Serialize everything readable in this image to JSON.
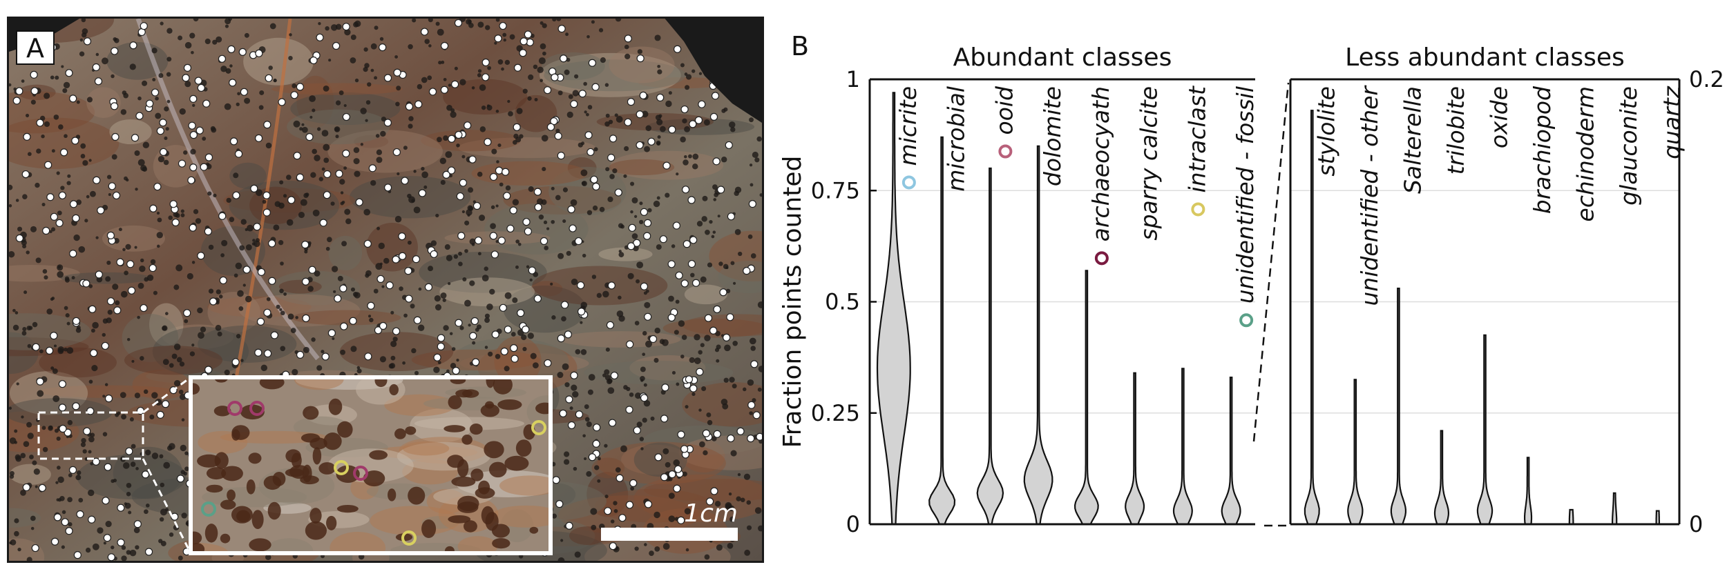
{
  "panel_a": {
    "label": "A",
    "scale_bar": "1cm"
  },
  "panel_b_label": "B",
  "chart_data": [
    {
      "type": "violin",
      "title": "Abundant classes",
      "y_label": "Fraction points counted",
      "categories": [
        "micrite",
        "microbial",
        "ooid",
        "dolomite",
        "archaeocyath",
        "sparry calcite",
        "intraclast",
        "unidentified - fossil"
      ],
      "values": [
        0.97,
        0.87,
        0.8,
        0.85,
        0.57,
        0.34,
        0.35,
        0.33
      ],
      "modes": [
        0.35,
        0.05,
        0.07,
        0.1,
        0.04,
        0.04,
        0.03,
        0.03
      ],
      "densities": [
        0.65,
        0.5,
        0.5,
        0.55,
        0.45,
        0.35,
        0.35,
        0.35
      ],
      "marker_colors": [
        "#8ec6e0",
        null,
        "#b8607a",
        null,
        "#7a1a40",
        null,
        "#d8c860",
        "#5aa088"
      ],
      "color": "#d3d3d3",
      "ylim": [
        0,
        1
      ],
      "yticks": [
        0,
        0.25,
        0.5,
        0.75,
        1
      ],
      "grid": true,
      "axis_side": "left"
    },
    {
      "type": "violin",
      "title": "Less abundant classes",
      "categories": [
        "stylolite",
        "unidentified - other",
        "Salterella",
        "trilobite",
        "oxide",
        "brachiopod",
        "echinoderm",
        "glauconite",
        "quartz"
      ],
      "values": [
        0.186,
        0.065,
        0.106,
        0.042,
        0.085,
        0.03,
        0.0065,
        0.014,
        0.006
      ],
      "modes": [
        0.006,
        0.006,
        0.006,
        0.005,
        0.006,
        0.003,
        0.001,
        0.001,
        0.001
      ],
      "densities": [
        0.3,
        0.3,
        0.3,
        0.28,
        0.3,
        0.12,
        0.05,
        0.06,
        0.03
      ],
      "color": "#d3d3d3",
      "ylim": [
        0,
        0.2
      ],
      "yticks": [
        0,
        0.2
      ],
      "gridlines": [
        0.05,
        0.1,
        0.15
      ],
      "axis_side": "right"
    }
  ]
}
